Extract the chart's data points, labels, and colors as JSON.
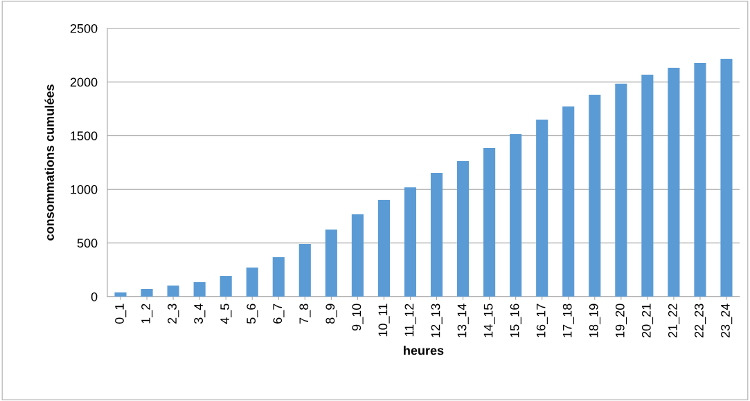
{
  "chart_data": {
    "type": "bar",
    "xlabel": "heures",
    "ylabel": "consommations cumulées",
    "categories": [
      "0_1",
      "1_2",
      "2_3",
      "3_4",
      "4_5",
      "5_6",
      "6_7",
      "7_8",
      "8_9",
      "9_10",
      "10_11",
      "11_12",
      "12_13",
      "13_14",
      "14_15",
      "15_16",
      "16_17",
      "17_18",
      "18_19",
      "19_20",
      "20_21",
      "21_22",
      "22_23",
      "23_24"
    ],
    "values": [
      39,
      71,
      103,
      135,
      193,
      271,
      367,
      490,
      625,
      767,
      902,
      1018,
      1153,
      1263,
      1385,
      1514,
      1650,
      1772,
      1882,
      1985,
      2069,
      2133,
      2178,
      2216
    ],
    "color": "#5b9bd5",
    "ylim": [
      0,
      2500
    ],
    "yticks": [
      0,
      500,
      1000,
      1500,
      2000,
      2500
    ],
    "grid": "y",
    "legend": false
  }
}
